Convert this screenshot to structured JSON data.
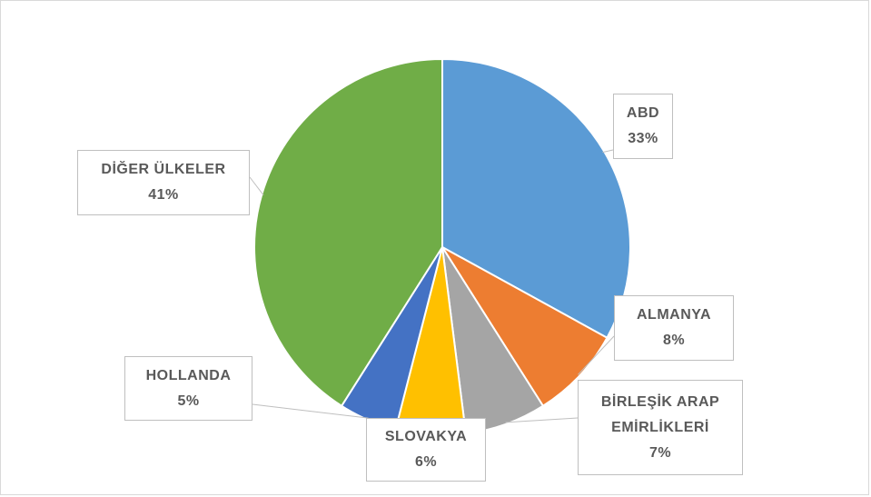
{
  "chart_data": {
    "type": "pie",
    "categories": [
      "ABD",
      "ALMANYA",
      "BİRLEŞİK ARAP EMİRLİKLERİ",
      "SLOVAKYA",
      "HOLLANDA",
      "DİĞER ÜLKELER"
    ],
    "values": [
      33,
      8,
      7,
      6,
      5,
      41
    ],
    "value_labels": [
      "33%",
      "8%",
      "7%",
      "6%",
      "5%",
      "41%"
    ],
    "colors": [
      "#5b9bd5",
      "#ed7d31",
      "#a5a5a5",
      "#ffc000",
      "#4472c4",
      "#70ad47"
    ]
  }
}
